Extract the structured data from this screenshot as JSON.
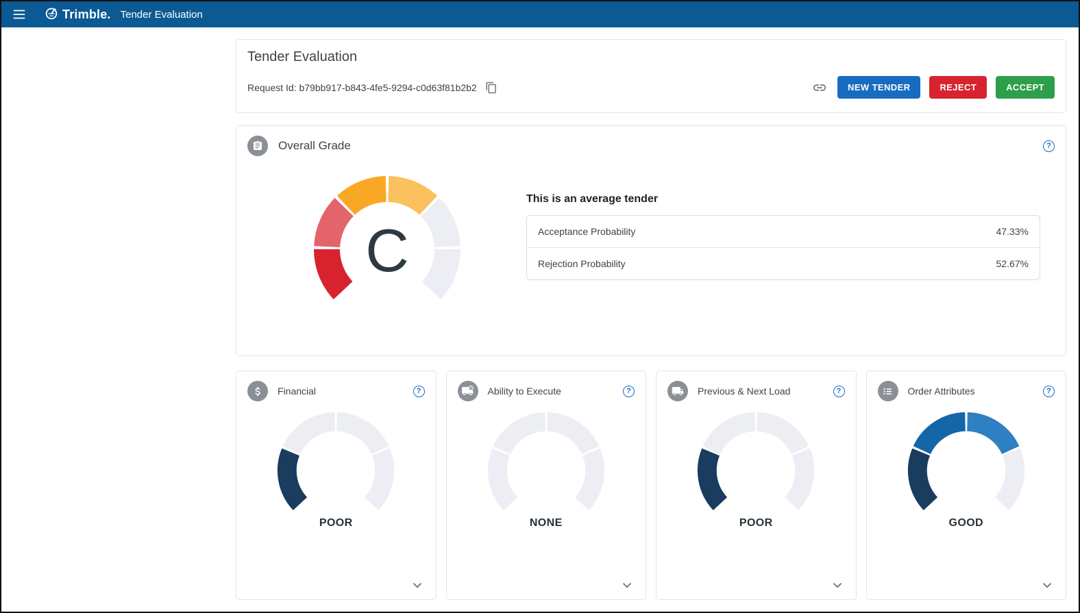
{
  "navbar": {
    "brand": "Trimble.",
    "app_title": "Tender Evaluation"
  },
  "header": {
    "title": "Tender Evaluation",
    "request_id": "Request Id: b79bb917-b843-4fe5-9294-c0d63f81b2b2",
    "actions": {
      "new_tender": "NEW TENDER",
      "reject": "REJECT",
      "accept": "ACCEPT"
    }
  },
  "overall": {
    "title": "Overall Grade",
    "grade": "C",
    "summary": "This is an average tender",
    "probabilities": [
      {
        "label": "Acceptance Probability",
        "value": "47.33%"
      },
      {
        "label": "Rejection Probability",
        "value": "52.67%"
      }
    ],
    "gauge": {
      "segments": [
        "#D8232E",
        "#E4646B",
        "#F9A825",
        "#FBC15E",
        "#ECEEF3",
        "#ECEEF3"
      ]
    }
  },
  "cards": [
    {
      "label": "Financial",
      "icon": "dollar-icon",
      "rating": "POOR",
      "gauge": {
        "segments": [
          "#1A3C5E",
          "#ECEEF3",
          "#ECEEF3",
          "#ECEEF3"
        ]
      }
    },
    {
      "label": "Ability to Execute",
      "icon": "truck-clock-icon",
      "rating": "NONE",
      "gauge": {
        "segments": [
          "#ECEEF3",
          "#ECEEF3",
          "#ECEEF3",
          "#ECEEF3"
        ]
      }
    },
    {
      "label": "Previous & Next Load",
      "icon": "truck-icon",
      "rating": "POOR",
      "gauge": {
        "segments": [
          "#1A3C5E",
          "#ECEEF3",
          "#ECEEF3",
          "#ECEEF3"
        ]
      }
    },
    {
      "label": "Order Attributes",
      "icon": "list-icon",
      "rating": "GOOD",
      "gauge": {
        "segments": [
          "#1A3C5E",
          "#1566A8",
          "#2F80C2",
          "#ECEEF3"
        ]
      }
    }
  ],
  "icons": {
    "help": "?"
  },
  "colors": {
    "navbar": "#0B5A94",
    "primary_button": "#176BC1",
    "reject_button": "#D8232E",
    "accept_button": "#2D9E49",
    "gauge_empty": "#ECEEF3",
    "gauge_navy": "#1A3C5E",
    "gauge_blue_mid": "#1566A8",
    "gauge_blue_light": "#2F80C2",
    "grade_red": "#D8232E",
    "grade_salmon": "#E4646B",
    "grade_amber": "#F9A825",
    "grade_amber_light": "#FBC15E",
    "icon_circle": "#8B9096"
  },
  "chart_data": [
    {
      "type": "gauge",
      "title": "Overall Grade",
      "value": "C",
      "segments": 6,
      "colored_segments": 4,
      "notes": "6-segment arc gauge, red to amber to gray, grade letter C in center"
    },
    {
      "type": "gauge",
      "title": "Financial",
      "value": "POOR",
      "segments": 4,
      "filled": 1
    },
    {
      "type": "gauge",
      "title": "Ability to Execute",
      "value": "NONE",
      "segments": 4,
      "filled": 0
    },
    {
      "type": "gauge",
      "title": "Previous & Next Load",
      "value": "POOR",
      "segments": 4,
      "filled": 1
    },
    {
      "type": "gauge",
      "title": "Order Attributes",
      "value": "GOOD",
      "segments": 4,
      "filled": 3
    }
  ]
}
